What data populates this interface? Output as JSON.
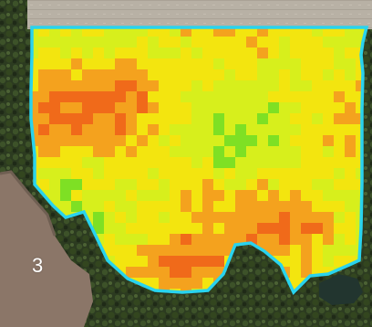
{
  "zone": {
    "label": "3"
  },
  "map": {
    "imagery": "satellite",
    "overlay": "yield-heatmap",
    "colors": {
      "boundary": "#29d3ee",
      "river": "#8b7668",
      "river_edge": "#9b8576",
      "field_bare_top": "#b9b3a8",
      "forest_dark": "#26331c",
      "forest_mid": "#3b4d2a",
      "forest_light": "#5a6b3a",
      "heat_high": "#7ee024",
      "heat_mid_high": "#d7ef1c",
      "heat_mid": "#f3e50f",
      "heat_mid_low": "#f4a21e",
      "heat_low": "#f06a1a",
      "heat_lowest": "#e1461b"
    }
  }
}
